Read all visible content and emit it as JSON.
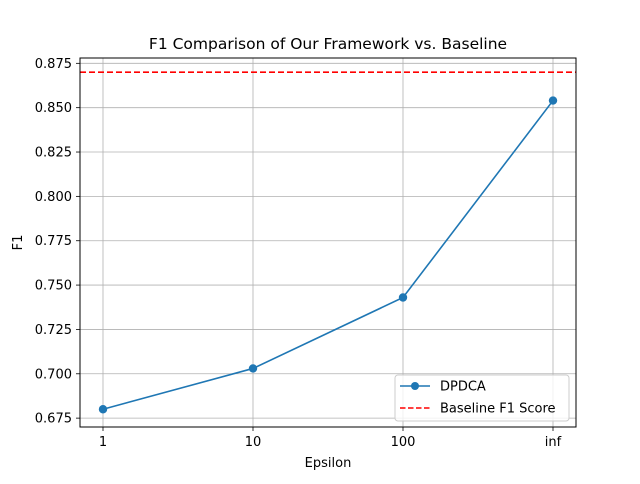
{
  "chart_data": {
    "type": "line",
    "title": "F1 Comparison of Our Framework vs. Baseline",
    "xlabel": "Epsilon",
    "ylabel": "F1",
    "categories": [
      "1",
      "10",
      "100",
      "inf"
    ],
    "series": [
      {
        "name": "DPDCA",
        "values": [
          0.68,
          0.703,
          0.743,
          0.854
        ],
        "color": "#1f77b4",
        "marker": "circle",
        "linestyle": "solid"
      }
    ],
    "reference_lines": [
      {
        "name": "Baseline F1 Score",
        "value": 0.87,
        "color": "#ff0000",
        "linestyle": "dashed"
      }
    ],
    "ylim": [
      0.67,
      0.878
    ],
    "yticks": [
      "0.675",
      "0.700",
      "0.725",
      "0.750",
      "0.775",
      "0.800",
      "0.825",
      "0.850",
      "0.875"
    ],
    "grid": true,
    "legend_position": "lower-right"
  }
}
